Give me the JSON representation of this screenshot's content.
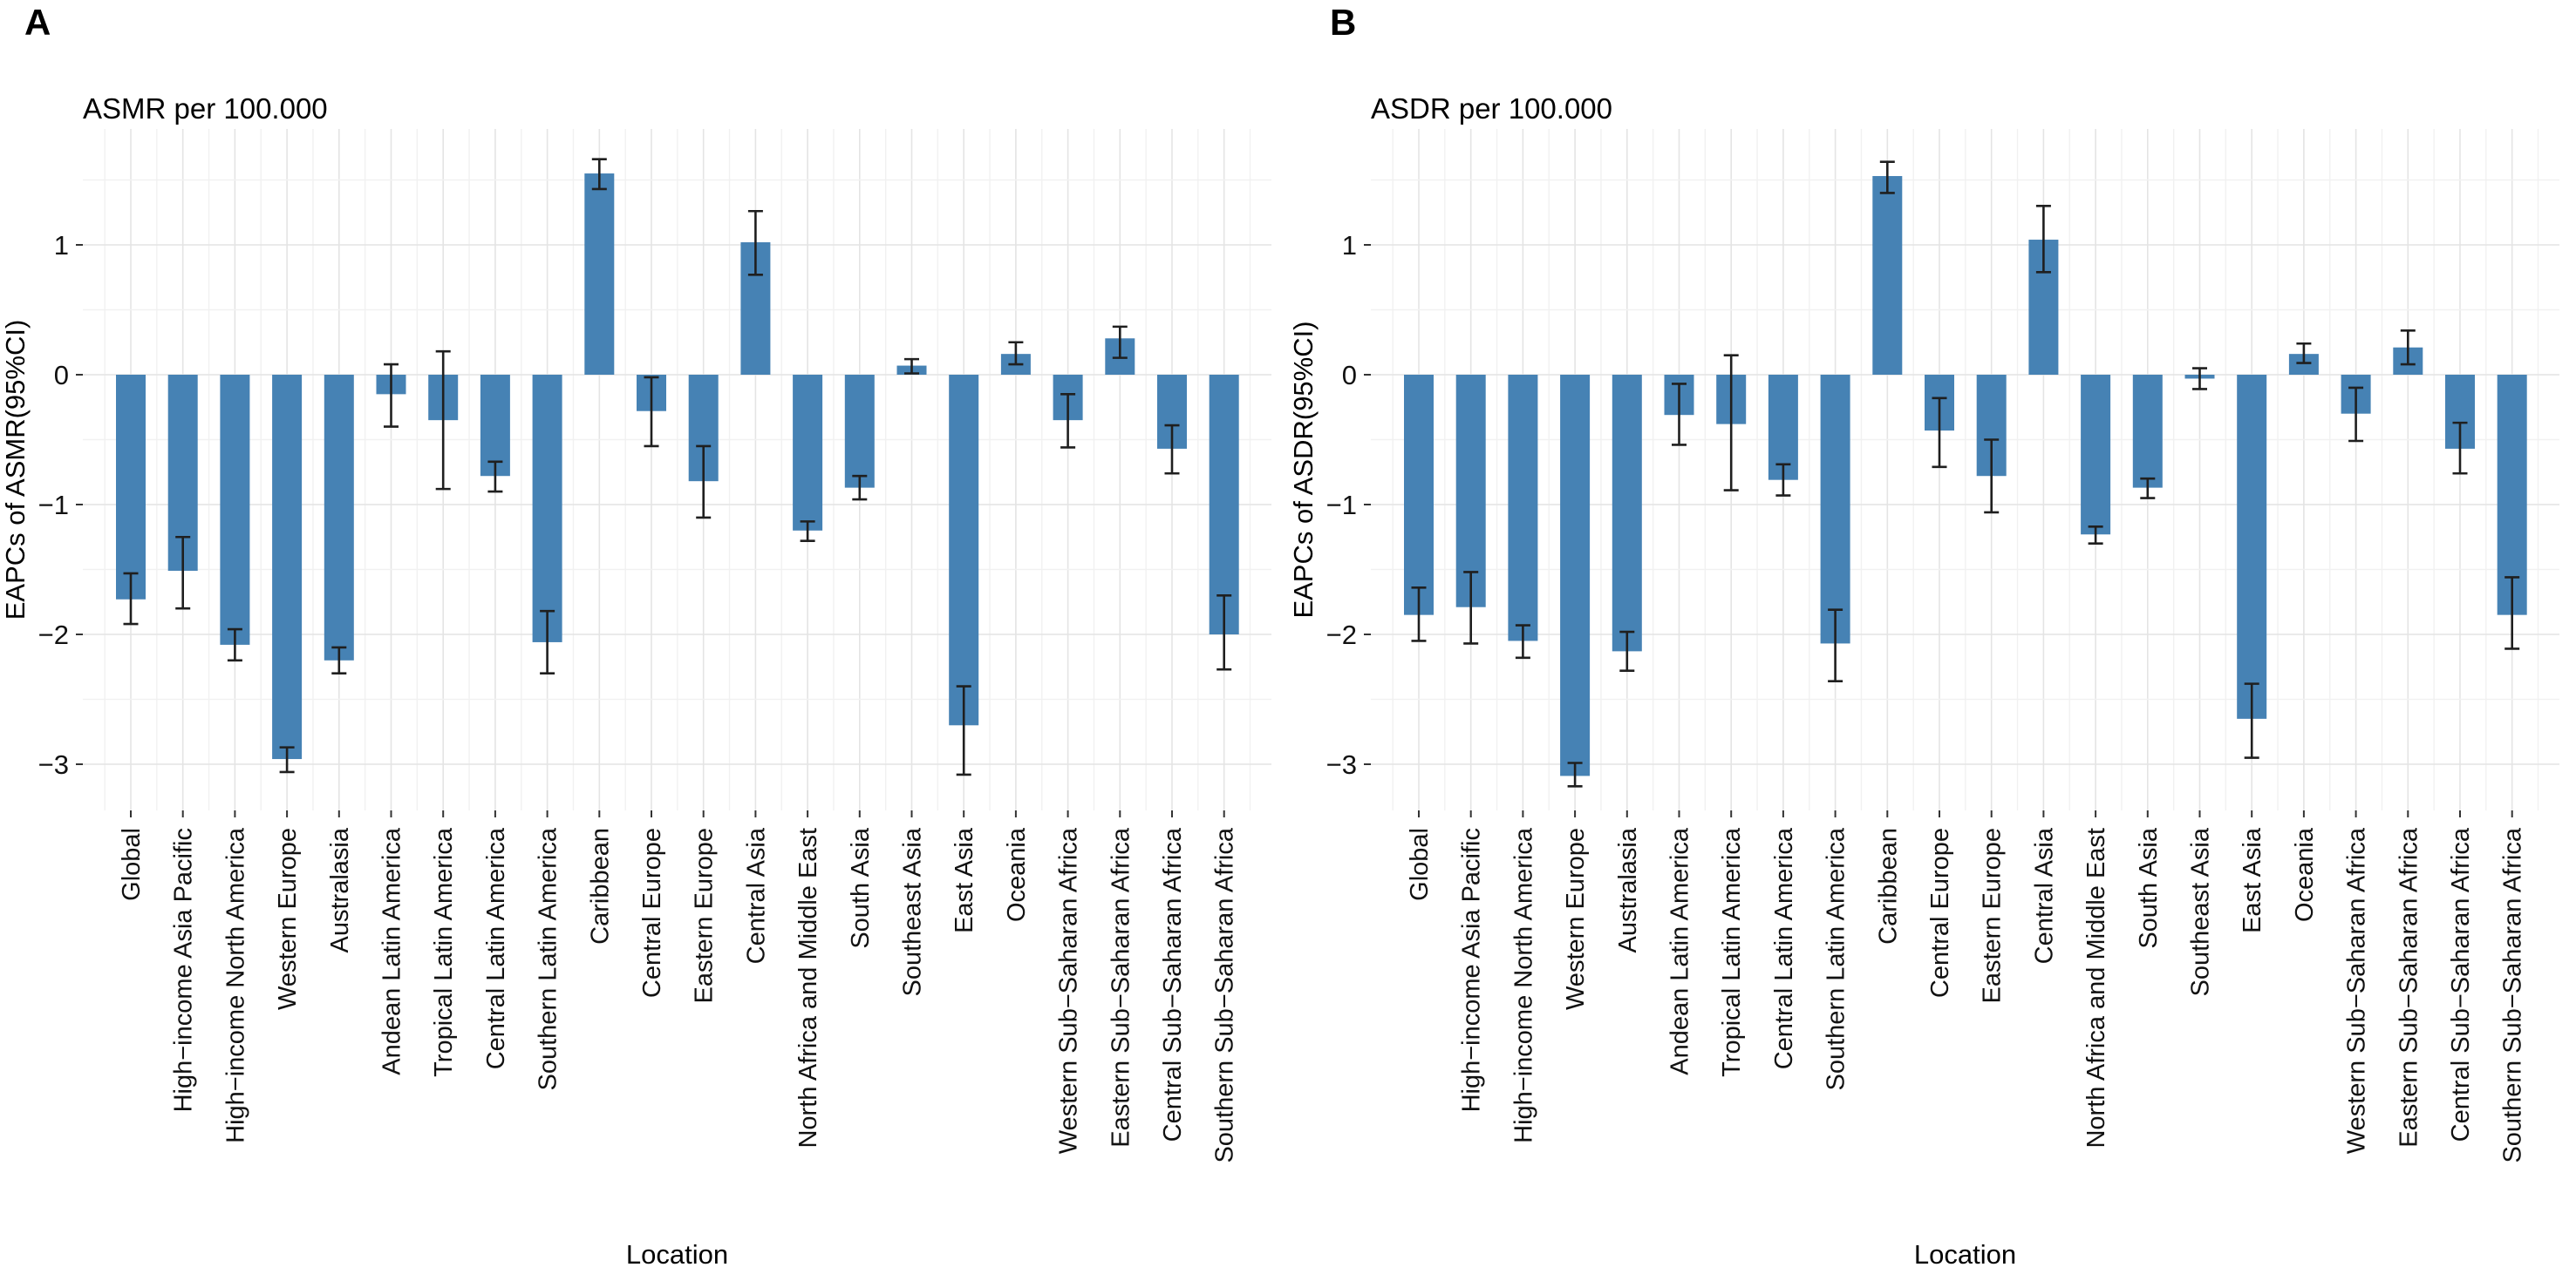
{
  "figure": {
    "panels": [
      {
        "label": "A"
      },
      {
        "label": "B"
      }
    ]
  },
  "chart_data": [
    {
      "type": "bar",
      "title": "ASMR per 100.000",
      "ylabel": "EAPCs of ASMR(95%CI)",
      "xlabel": "Location",
      "ylim": [
        -3.35,
        1.95
      ],
      "yticks": [
        1,
        0,
        -1,
        -2,
        -3
      ],
      "grid": "on",
      "legend_position": "none",
      "bar_color": "#4682b4",
      "error_bar_color": "#1f1f1f",
      "categories": [
        "Global",
        "High−income Asia Pacific",
        "High−income North America",
        "Western Europe",
        "Australasia",
        "Andean Latin America",
        "Tropical Latin America",
        "Central Latin America",
        "Southern Latin America",
        "Caribbean",
        "Central Europe",
        "Eastern Europe",
        "Central Asia",
        "North Africa and Middle East",
        "South Asia",
        "Southeast Asia",
        "East Asia",
        "Oceania",
        "Western Sub−Saharan Africa",
        "Eastern Sub−Saharan Africa",
        "Central Sub−Saharan Africa",
        "Southern Sub−Saharan Africa"
      ],
      "values": [
        -1.73,
        -1.51,
        -2.08,
        -2.96,
        -2.2,
        -0.15,
        -0.35,
        -0.78,
        -2.06,
        1.55,
        -0.28,
        -0.82,
        1.02,
        -1.2,
        -0.87,
        0.07,
        -2.7,
        0.16,
        -0.35,
        0.28,
        -0.57,
        -2.0
      ],
      "ci_upper": [
        -1.53,
        -1.25,
        -1.96,
        -2.87,
        -2.1,
        0.08,
        0.18,
        -0.67,
        -1.82,
        1.66,
        -0.02,
        -0.55,
        1.26,
        -1.13,
        -0.78,
        0.12,
        -2.4,
        0.25,
        -0.15,
        0.37,
        -0.39,
        -1.7
      ],
      "ci_lower": [
        -1.92,
        -1.8,
        -2.2,
        -3.06,
        -2.3,
        -0.4,
        -0.88,
        -0.9,
        -2.3,
        1.43,
        -0.55,
        -1.1,
        0.77,
        -1.28,
        -0.96,
        0.01,
        -3.08,
        0.08,
        -0.56,
        0.13,
        -0.76,
        -2.27
      ]
    },
    {
      "type": "bar",
      "title": "ASDR per 100.000",
      "ylabel": "EAPCs of ASDR(95%CI)",
      "xlabel": "Location",
      "ylim": [
        -3.35,
        1.95
      ],
      "yticks": [
        1,
        0,
        -1,
        -2,
        -3
      ],
      "grid": "on",
      "legend_position": "none",
      "bar_color": "#4682b4",
      "error_bar_color": "#1f1f1f",
      "categories": [
        "Global",
        "High−income Asia Pacific",
        "High−income North America",
        "Western Europe",
        "Australasia",
        "Andean Latin America",
        "Tropical Latin America",
        "Central Latin America",
        "Southern Latin America",
        "Caribbean",
        "Central Europe",
        "Eastern Europe",
        "Central Asia",
        "North Africa and Middle East",
        "South Asia",
        "Southeast Asia",
        "East Asia",
        "Oceania",
        "Western Sub−Saharan Africa",
        "Eastern Sub−Saharan Africa",
        "Central Sub−Saharan Africa",
        "Southern Sub−Saharan Africa"
      ],
      "values": [
        -1.85,
        -1.79,
        -2.05,
        -3.09,
        -2.13,
        -0.31,
        -0.38,
        -0.81,
        -2.07,
        1.53,
        -0.43,
        -0.78,
        1.04,
        -1.23,
        -0.87,
        -0.03,
        -2.65,
        0.16,
        -0.3,
        0.21,
        -0.57,
        -1.85
      ],
      "ci_upper": [
        -1.64,
        -1.52,
        -1.93,
        -2.99,
        -1.98,
        -0.07,
        0.15,
        -0.69,
        -1.81,
        1.64,
        -0.18,
        -0.5,
        1.3,
        -1.17,
        -0.8,
        0.05,
        -2.38,
        0.24,
        -0.1,
        0.34,
        -0.37,
        -1.56
      ],
      "ci_lower": [
        -2.05,
        -2.07,
        -2.18,
        -3.17,
        -2.28,
        -0.54,
        -0.89,
        -0.93,
        -2.36,
        1.4,
        -0.71,
        -1.06,
        0.79,
        -1.3,
        -0.95,
        -0.11,
        -2.95,
        0.09,
        -0.51,
        0.08,
        -0.76,
        -2.11
      ]
    }
  ]
}
